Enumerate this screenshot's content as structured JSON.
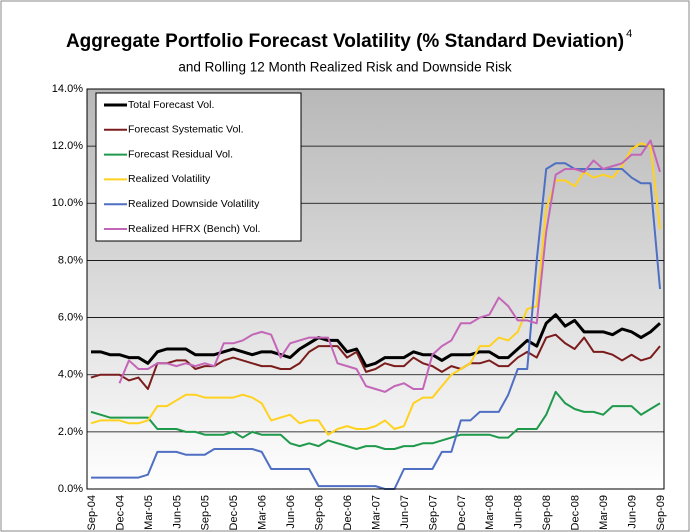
{
  "chart_data": {
    "type": "line",
    "title": "Aggregate Portfolio Forecast Volatility (% Standard Deviation)",
    "title_note": "4",
    "subtitle": "and Rolling 12 Month Realized Risk and Downside Risk",
    "categories": [
      "Sep-04",
      null,
      null,
      "Dec-04",
      null,
      null,
      "Mar-05",
      null,
      null,
      "Jun-05",
      null,
      null,
      "Sep-05",
      null,
      null,
      "Dec-05",
      null,
      null,
      "Mar-06",
      null,
      null,
      "Jun-06",
      null,
      null,
      "Sep-06",
      null,
      null,
      "Dec-06",
      null,
      null,
      "Mar-07",
      null,
      null,
      "Jun-07",
      null,
      null,
      "Sep-07",
      null,
      null,
      "Dec-07",
      null,
      null,
      "Mar-08",
      null,
      null,
      "Jun-08",
      null,
      null,
      "Sep-08",
      null,
      null,
      "Dec-08",
      null,
      null,
      "Mar-09",
      null,
      null,
      "Jun-09",
      null,
      null,
      "Sep-09"
    ],
    "series": [
      {
        "name": "Total Forecast Vol.",
        "color": "#000000",
        "values": [
          4.8,
          4.8,
          4.7,
          4.7,
          4.6,
          4.6,
          4.4,
          4.8,
          4.9,
          4.9,
          4.9,
          4.7,
          4.7,
          4.7,
          4.8,
          4.9,
          4.8,
          4.7,
          4.8,
          4.8,
          4.7,
          4.6,
          4.9,
          5.1,
          5.3,
          5.2,
          5.2,
          4.8,
          4.9,
          4.3,
          4.4,
          4.6,
          4.6,
          4.6,
          4.8,
          4.7,
          4.7,
          4.5,
          4.7,
          4.7,
          4.7,
          4.8,
          4.8,
          4.6,
          4.6,
          4.9,
          5.2,
          5.0,
          5.8,
          6.1,
          5.7,
          5.9,
          5.5,
          5.5,
          5.5,
          5.4,
          5.6,
          5.5,
          5.3,
          5.5,
          5.8
        ]
      },
      {
        "name": "Forecast Systematic Vol.",
        "color": "#7b1c1c",
        "values": [
          3.9,
          4.0,
          4.0,
          4.0,
          3.8,
          3.9,
          3.5,
          4.4,
          4.4,
          4.5,
          4.5,
          4.2,
          4.3,
          4.3,
          4.5,
          4.6,
          4.5,
          4.4,
          4.3,
          4.3,
          4.2,
          4.2,
          4.4,
          4.8,
          5.0,
          5.0,
          5.0,
          4.6,
          4.8,
          4.1,
          4.2,
          4.4,
          4.3,
          4.3,
          4.6,
          4.4,
          4.3,
          4.1,
          4.3,
          4.2,
          4.4,
          4.4,
          4.5,
          4.3,
          4.3,
          4.6,
          4.8,
          4.6,
          5.3,
          5.4,
          5.1,
          4.9,
          5.3,
          4.8,
          4.8,
          4.7,
          4.5,
          4.7,
          4.5,
          4.6,
          5.0
        ]
      },
      {
        "name": "Forecast Residual Vol.",
        "color": "#1f9a4c",
        "values": [
          2.7,
          2.6,
          2.5,
          2.5,
          2.5,
          2.5,
          2.5,
          2.1,
          2.1,
          2.1,
          2.0,
          2.0,
          1.9,
          1.9,
          1.9,
          2.0,
          1.8,
          2.0,
          1.9,
          1.9,
          1.9,
          1.6,
          1.5,
          1.6,
          1.5,
          1.7,
          1.6,
          1.5,
          1.4,
          1.5,
          1.5,
          1.4,
          1.4,
          1.5,
          1.5,
          1.6,
          1.6,
          1.7,
          1.8,
          1.9,
          1.9,
          1.9,
          1.9,
          1.8,
          1.8,
          2.1,
          2.1,
          2.1,
          2.6,
          3.4,
          3.0,
          2.8,
          2.7,
          2.7,
          2.6,
          2.9,
          2.9,
          2.9,
          2.6,
          2.8,
          3.0
        ]
      },
      {
        "name": "Realized Volatility",
        "color": "#ffd21f",
        "values": [
          2.3,
          2.4,
          2.4,
          2.4,
          2.3,
          2.3,
          2.4,
          2.9,
          2.9,
          3.1,
          3.3,
          3.3,
          3.2,
          3.2,
          3.2,
          3.2,
          3.3,
          3.2,
          3.0,
          2.4,
          2.5,
          2.6,
          2.3,
          2.4,
          2.4,
          1.9,
          2.1,
          2.2,
          2.1,
          2.1,
          2.2,
          2.4,
          2.1,
          2.2,
          3.0,
          3.2,
          3.2,
          3.6,
          4.0,
          4.2,
          4.4,
          5.0,
          5.0,
          5.3,
          5.2,
          5.5,
          6.3,
          6.4,
          9.8,
          10.8,
          10.8,
          10.6,
          11.1,
          10.9,
          11.0,
          10.9,
          11.3,
          11.9,
          12.1,
          12.0,
          9.1
        ]
      },
      {
        "name": "Realized Downside Volatility",
        "color": "#4f6fc2",
        "values": [
          0.4,
          0.4,
          0.4,
          0.4,
          0.4,
          0.4,
          0.5,
          1.3,
          1.3,
          1.3,
          1.2,
          1.2,
          1.2,
          1.4,
          1.4,
          1.4,
          1.4,
          1.4,
          1.3,
          0.7,
          0.7,
          0.7,
          0.7,
          0.7,
          0.1,
          0.1,
          0.1,
          0.1,
          0.1,
          0.1,
          0.1,
          0.0,
          0.0,
          0.7,
          0.7,
          0.7,
          0.7,
          1.3,
          1.3,
          2.4,
          2.4,
          2.7,
          2.7,
          2.7,
          3.3,
          4.2,
          4.2,
          8.0,
          11.2,
          11.4,
          11.4,
          11.2,
          11.2,
          11.2,
          11.2,
          11.2,
          11.2,
          10.9,
          10.7,
          10.7,
          7.0
        ]
      },
      {
        "name": "Realized HFRX (Bench) Vol.",
        "color": "#c466b8",
        "values": [
          null,
          null,
          null,
          3.7,
          4.5,
          4.2,
          4.2,
          4.4,
          4.4,
          4.3,
          4.4,
          4.3,
          4.4,
          4.3,
          5.1,
          5.1,
          5.2,
          5.4,
          5.5,
          5.4,
          4.6,
          5.1,
          5.2,
          5.3,
          5.3,
          5.3,
          4.4,
          4.3,
          4.2,
          3.6,
          3.5,
          3.4,
          3.6,
          3.7,
          3.5,
          3.5,
          4.7,
          5.0,
          5.2,
          5.8,
          5.8,
          6.0,
          6.1,
          6.7,
          6.4,
          5.9,
          5.9,
          5.8,
          9.0,
          11.0,
          11.2,
          11.2,
          11.1,
          11.5,
          11.2,
          11.3,
          11.4,
          11.7,
          11.7,
          12.2,
          11.1
        ]
      }
    ],
    "ylim": [
      0,
      14
    ],
    "yticks": [
      {
        "value": 0,
        "label": "0.0%"
      },
      {
        "value": 2,
        "label": "2.0%"
      },
      {
        "value": 4,
        "label": "4.0%"
      },
      {
        "value": 6,
        "label": "6.0%"
      },
      {
        "value": 8,
        "label": "8.0%"
      },
      {
        "value": 10,
        "label": "10.0%"
      },
      {
        "value": 12,
        "label": "12.0%"
      },
      {
        "value": 14,
        "label": "14.0%"
      }
    ],
    "grid": true,
    "legend": "upper left"
  }
}
